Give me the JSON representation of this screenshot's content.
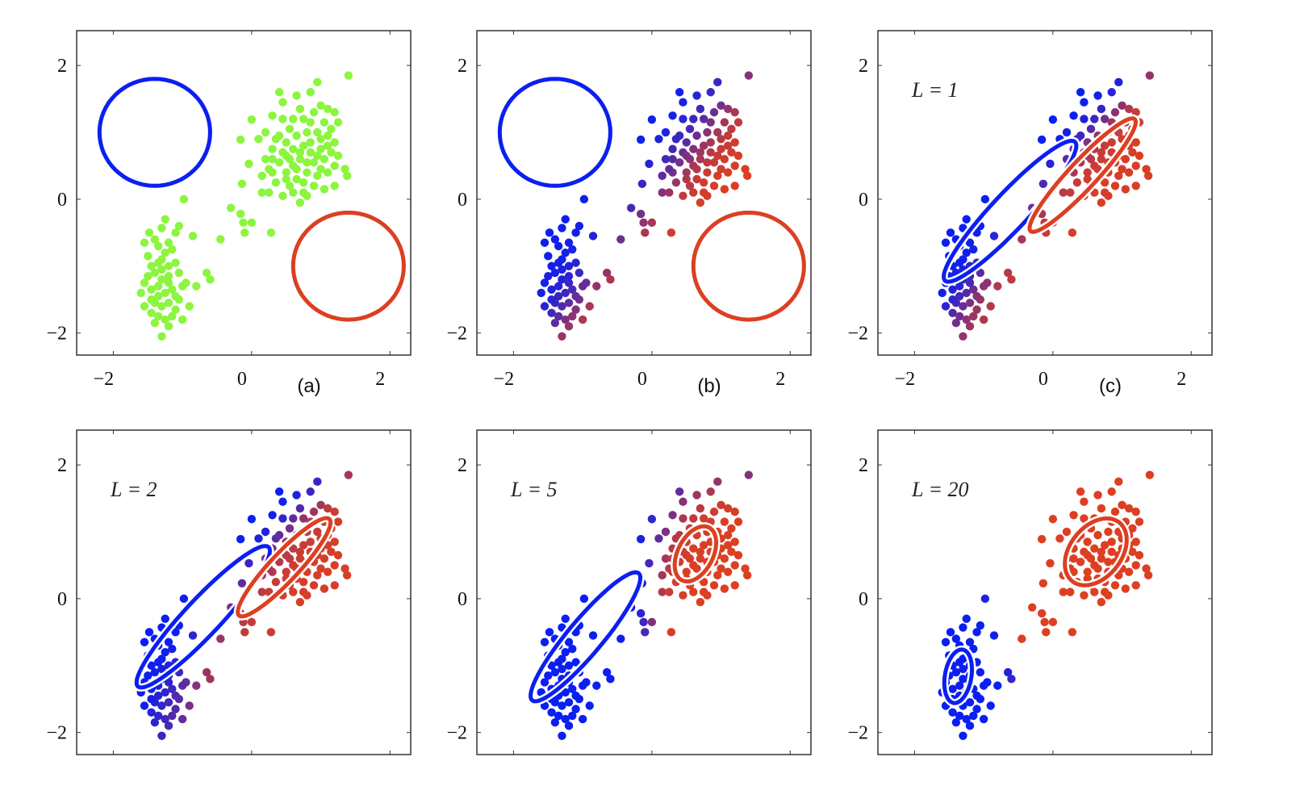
{
  "chart_data": [
    {
      "type": "scatter",
      "panel_label": "(a)",
      "annotation": "",
      "point_color": "#8cf53f",
      "show_xticks": true,
      "show_ellipse_halo": false,
      "components": [
        {
          "mean": [
            -1.4,
            1.0
          ],
          "cov": [
            [
              0.64,
              0
            ],
            [
              0,
              0.64
            ]
          ],
          "color": "#0b1ff2"
        },
        {
          "mean": [
            1.4,
            -1.0
          ],
          "cov": [
            [
              0.64,
              0
            ],
            [
              0,
              0.64
            ]
          ],
          "color": "#dc3f22"
        }
      ]
    },
    {
      "type": "scatter",
      "panel_label": "(b)",
      "annotation": "",
      "point_color": "responsibility",
      "show_xticks": true,
      "show_ellipse_halo": false,
      "components": [
        {
          "mean": [
            -1.4,
            1.0
          ],
          "cov": [
            [
              0.64,
              0
            ],
            [
              0,
              0.64
            ]
          ],
          "color": "#0b1ff2"
        },
        {
          "mean": [
            1.4,
            -1.0
          ],
          "cov": [
            [
              0.64,
              0
            ],
            [
              0,
              0.64
            ]
          ],
          "color": "#dc3f22"
        }
      ]
    },
    {
      "type": "scatter",
      "panel_label": "(c)",
      "annotation": "L = 1",
      "point_color": "responsibility",
      "show_xticks": true,
      "show_ellipse_halo": true,
      "components": [
        {
          "mean": [
            -0.62,
            -0.18
          ],
          "cov": [
            [
              0.92,
              0.94
            ],
            [
              0.94,
              1.11
            ]
          ],
          "color": "#0b1ff2"
        },
        {
          "mean": [
            0.43,
            0.36
          ],
          "cov": [
            [
              0.59,
              0.61
            ],
            [
              0.61,
              0.72
            ]
          ],
          "color": "#dc3f22"
        }
      ]
    },
    {
      "type": "scatter",
      "panel_label": "",
      "annotation": "L = 2",
      "point_color": "responsibility",
      "show_xticks": false,
      "show_ellipse_halo": true,
      "components": [
        {
          "mean": [
            -0.7,
            -0.27
          ],
          "cov": [
            [
              0.93,
              0.95
            ],
            [
              0.95,
              1.12
            ]
          ],
          "color": "#0b1ff2"
        },
        {
          "mean": [
            0.47,
            0.47
          ],
          "cov": [
            [
              0.45,
              0.45
            ],
            [
              0.45,
              0.54
            ]
          ],
          "color": "#dc3f22"
        }
      ]
    },
    {
      "type": "scatter",
      "panel_label": "",
      "annotation": "L = 5",
      "point_color": "responsibility",
      "show_xticks": false,
      "show_ellipse_halo": true,
      "components": [
        {
          "mean": [
            -0.96,
            -0.57
          ],
          "cov": [
            [
              0.63,
              0.7
            ],
            [
              0.7,
              0.93
            ]
          ],
          "color": "#0b1ff2"
        },
        {
          "mean": [
            0.63,
            0.67
          ],
          "cov": [
            [
              0.09,
              0.05
            ],
            [
              0.05,
              0.17
            ]
          ],
          "color": "#dc3f22"
        }
      ]
    },
    {
      "type": "scatter",
      "panel_label": "",
      "annotation": "L = 20",
      "point_color": "responsibility",
      "show_xticks": false,
      "show_ellipse_halo": true,
      "components": [
        {
          "mean": [
            -1.37,
            -1.16
          ],
          "cov": [
            [
              0.04,
              0.02
            ],
            [
              0.02,
              0.16
            ]
          ],
          "color": "#0b1ff2"
        },
        {
          "mean": [
            0.62,
            0.7
          ],
          "cov": [
            [
              0.2,
              0.08
            ],
            [
              0.08,
              0.25
            ]
          ],
          "color": "#dc3f22"
        }
      ]
    }
  ],
  "axes": {
    "xlim": [
      -2.53,
      2.3
    ],
    "ylim": [
      -2.33,
      2.52
    ],
    "xticks": [
      -2,
      0,
      2
    ],
    "yticks": [
      -2,
      0,
      2
    ],
    "grid": false
  },
  "points": [
    [
      -1.48,
      -0.5
    ],
    [
      -1.3,
      -0.43
    ],
    [
      -1.25,
      -0.3
    ],
    [
      -1.1,
      -0.5
    ],
    [
      -1.05,
      -0.4
    ],
    [
      -0.85,
      -0.55
    ],
    [
      -1.2,
      -0.65
    ],
    [
      -1.35,
      -0.7
    ],
    [
      -1.5,
      -0.85
    ],
    [
      -1.45,
      -1.0
    ],
    [
      -1.3,
      -0.9
    ],
    [
      -1.2,
      -1.0
    ],
    [
      -1.1,
      -0.95
    ],
    [
      -1.4,
      -1.1
    ],
    [
      -1.55,
      -1.25
    ],
    [
      -1.3,
      -1.2
    ],
    [
      -1.2,
      -1.15
    ],
    [
      -1.05,
      -1.1
    ],
    [
      -0.95,
      -1.25
    ],
    [
      -0.8,
      -1.3
    ],
    [
      -1.45,
      -1.35
    ],
    [
      -1.6,
      -1.4
    ],
    [
      -1.35,
      -1.45
    ],
    [
      -1.25,
      -1.4
    ],
    [
      -1.15,
      -1.35
    ],
    [
      -1.05,
      -1.5
    ],
    [
      -1.4,
      -1.55
    ],
    [
      -1.3,
      -1.6
    ],
    [
      -1.2,
      -1.55
    ],
    [
      -1.1,
      -1.65
    ],
    [
      -1.45,
      -1.7
    ],
    [
      -1.35,
      -1.75
    ],
    [
      -1.25,
      -1.8
    ],
    [
      -1.4,
      -1.85
    ],
    [
      -1.2,
      -1.9
    ],
    [
      -1.3,
      -2.05
    ],
    [
      -1.0,
      -1.8
    ],
    [
      -0.9,
      -1.6
    ],
    [
      -0.65,
      -1.1
    ],
    [
      -0.6,
      -1.2
    ],
    [
      -0.45,
      -0.6
    ],
    [
      -1.35,
      -0.95
    ],
    [
      -1.25,
      -0.8
    ],
    [
      -1.4,
      -0.6
    ],
    [
      -1.15,
      -0.75
    ],
    [
      -1.5,
      -1.15
    ],
    [
      -1.2,
      -1.25
    ],
    [
      -1.35,
      -1.3
    ],
    [
      -1.1,
      -1.45
    ],
    [
      -1.45,
      -1.5
    ],
    [
      -1.0,
      -1.3
    ],
    [
      -1.3,
      -1.05
    ],
    [
      -1.55,
      -1.6
    ],
    [
      -1.15,
      -1.75
    ],
    [
      -0.98,
      0.0
    ],
    [
      -1.55,
      -0.65
    ],
    [
      -0.16,
      -0.22
    ],
    [
      -0.12,
      -0.35
    ],
    [
      0.0,
      -0.35
    ],
    [
      -0.1,
      -0.5
    ],
    [
      0.28,
      -0.5
    ],
    [
      -0.3,
      -0.13
    ],
    [
      -0.14,
      0.23
    ],
    [
      -0.04,
      0.53
    ],
    [
      -0.16,
      0.89
    ],
    [
      0.0,
      1.19
    ],
    [
      0.4,
      1.6
    ],
    [
      0.45,
      1.45
    ],
    [
      0.65,
      1.55
    ],
    [
      0.85,
      1.6
    ],
    [
      0.95,
      1.75
    ],
    [
      1.4,
      1.85
    ],
    [
      0.3,
      1.25
    ],
    [
      0.45,
      1.2
    ],
    [
      0.7,
      1.35
    ],
    [
      0.75,
      1.2
    ],
    [
      0.9,
      1.3
    ],
    [
      1.0,
      1.4
    ],
    [
      1.1,
      1.35
    ],
    [
      1.2,
      1.3
    ],
    [
      1.25,
      1.15
    ],
    [
      1.05,
      1.15
    ],
    [
      0.55,
      1.05
    ],
    [
      0.2,
      1.0
    ],
    [
      0.1,
      0.9
    ],
    [
      0.35,
      0.9
    ],
    [
      0.5,
      0.85
    ],
    [
      0.65,
      0.95
    ],
    [
      0.8,
      1.0
    ],
    [
      0.95,
      1.0
    ],
    [
      1.1,
      0.95
    ],
    [
      1.2,
      0.85
    ],
    [
      0.3,
      0.75
    ],
    [
      0.45,
      0.7
    ],
    [
      0.6,
      0.75
    ],
    [
      0.75,
      0.8
    ],
    [
      0.85,
      0.7
    ],
    [
      1.0,
      0.75
    ],
    [
      1.15,
      0.7
    ],
    [
      1.25,
      0.65
    ],
    [
      0.2,
      0.6
    ],
    [
      0.4,
      0.55
    ],
    [
      0.55,
      0.6
    ],
    [
      0.7,
      0.6
    ],
    [
      0.9,
      0.55
    ],
    [
      1.05,
      0.6
    ],
    [
      1.2,
      0.5
    ],
    [
      0.3,
      0.4
    ],
    [
      0.5,
      0.4
    ],
    [
      0.65,
      0.45
    ],
    [
      0.8,
      0.4
    ],
    [
      0.95,
      0.35
    ],
    [
      1.1,
      0.4
    ],
    [
      0.35,
      0.25
    ],
    [
      0.55,
      0.2
    ],
    [
      0.75,
      0.25
    ],
    [
      0.9,
      0.2
    ],
    [
      1.05,
      0.15
    ],
    [
      1.35,
      0.45
    ],
    [
      1.38,
      0.35
    ],
    [
      0.45,
      0.05
    ],
    [
      0.6,
      0.1
    ],
    [
      0.7,
      -0.05
    ],
    [
      0.15,
      0.1
    ],
    [
      0.25,
      0.1
    ],
    [
      0.8,
      0.05
    ],
    [
      0.4,
      0.95
    ],
    [
      0.6,
      1.2
    ],
    [
      0.85,
      0.85
    ],
    [
      1.0,
      0.9
    ],
    [
      0.7,
      0.7
    ],
    [
      0.8,
      0.55
    ],
    [
      0.6,
      0.5
    ],
    [
      0.95,
      0.65
    ],
    [
      1.1,
      0.8
    ],
    [
      0.5,
      0.3
    ],
    [
      0.25,
      0.45
    ],
    [
      0.15,
      0.35
    ],
    [
      0.85,
      1.15
    ],
    [
      1.15,
      1.05
    ],
    [
      0.65,
      0.3
    ],
    [
      1.0,
      0.45
    ],
    [
      0.75,
      0.1
    ],
    [
      0.5,
      0.65
    ],
    [
      0.3,
      0.6
    ],
    [
      1.2,
      0.2
    ]
  ]
}
